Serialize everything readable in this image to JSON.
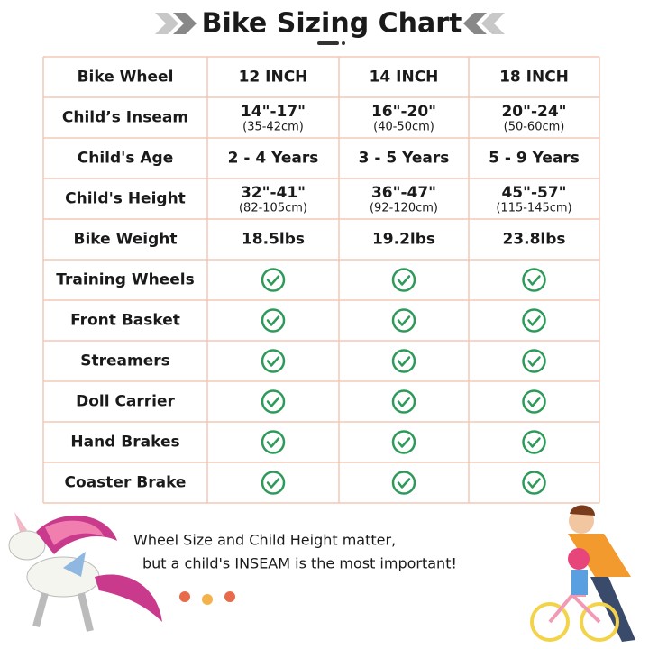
{
  "header": {
    "title": "Bike Sizing Chart"
  },
  "table": {
    "columns": [
      "Bike Wheel",
      "12 INCH",
      "14 INCH",
      "18 INCH"
    ],
    "rows": [
      {
        "label": "Child’s Inseam",
        "cells": [
          {
            "main": "14\"-17\"",
            "sub": "(35-42cm)"
          },
          {
            "main": "16\"-20\"",
            "sub": "(40-50cm)"
          },
          {
            "main": "20\"-24\"",
            "sub": "(50-60cm)"
          }
        ]
      },
      {
        "label": "Child's Age",
        "cells": [
          {
            "main": "2 - 4 Years"
          },
          {
            "main": "3 - 5 Years"
          },
          {
            "main": "5 - 9 Years"
          }
        ]
      },
      {
        "label": "Child's Height",
        "cells": [
          {
            "main": "32\"-41\"",
            "sub": "(82-105cm)"
          },
          {
            "main": "36\"-47\"",
            "sub": "(92-120cm)"
          },
          {
            "main": "45\"-57\"",
            "sub": "(115-145cm)"
          }
        ]
      },
      {
        "label": "Bike Weight",
        "cells": [
          {
            "main": "18.5lbs"
          },
          {
            "main": "19.2lbs"
          },
          {
            "main": "23.8lbs"
          }
        ]
      }
    ],
    "features": [
      "Training Wheels",
      "Front Basket",
      "Streamers",
      "Doll Carrier",
      "Hand Brakes",
      "Coaster Brake"
    ]
  },
  "footer": {
    "lines": [
      "Wheel Size and Child Height matter,",
      "but a child's INSEAM is the most important!"
    ]
  }
}
